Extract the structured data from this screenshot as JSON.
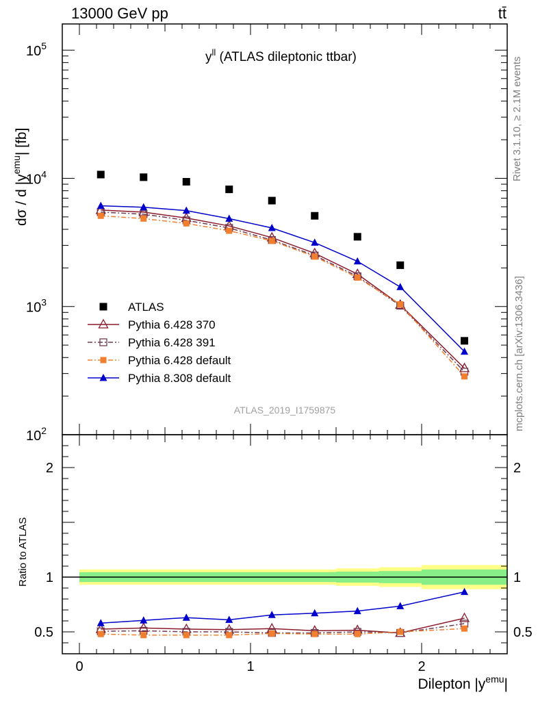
{
  "header": {
    "left": "13000 GeV pp",
    "right": "tt̄"
  },
  "chart_data": {
    "type": "scatter",
    "title": "y",
    "title_sup": "ll",
    "title_rest": " (ATLAS dileptonic ttbar)",
    "analysis_label": "ATLAS_2019_I1759875",
    "side_labels": {
      "rivet": "Rivet 3.1.10, ≥ 2.1M events",
      "mcplots": "mcplots.cern.ch [arXiv:1306.3436]"
    },
    "ylabel_main": "dσ / d |y",
    "ylabel_main_sup": "emu",
    "ylabel_main_tail": "| [fb]",
    "ylabel_ratio": "Ratio to ATLAS",
    "xlabel": "Dilepton |y",
    "xlabel_sup": "emu",
    "xlabel_tail": "|",
    "xlim": [
      -0.1,
      2.5
    ],
    "ylim_main_log": [
      100,
      160000
    ],
    "ylim_ratio": [
      0.3,
      2.3
    ],
    "x_ticks": [
      {
        "value": 0,
        "label": "0"
      },
      {
        "value": 1,
        "label": "1"
      },
      {
        "value": 2,
        "label": "2"
      }
    ],
    "y_ticks_main": [
      {
        "value": 1000,
        "base": "10",
        "exp": "3"
      },
      {
        "value": 10000,
        "base": "10",
        "exp": "4"
      },
      {
        "value": 100000,
        "base": "10",
        "exp": "5"
      },
      {
        "value": 100,
        "base": "10",
        "exp": "2"
      }
    ],
    "y_ticks_ratio": [
      {
        "value": 0.5,
        "label": "0.5"
      },
      {
        "value": 1,
        "label": "1"
      },
      {
        "value": 2,
        "label": "2"
      }
    ],
    "x": [
      0.125,
      0.375,
      0.625,
      0.875,
      1.125,
      1.375,
      1.625,
      1.875,
      2.25
    ],
    "band_edges": [
      0,
      0.25,
      0.5,
      0.75,
      1.0,
      1.25,
      1.5,
      1.75,
      2.0,
      2.5
    ],
    "band_yellow": [
      0.07,
      0.07,
      0.07,
      0.07,
      0.07,
      0.07,
      0.08,
      0.09,
      0.11
    ],
    "band_green": [
      0.045,
      0.045,
      0.045,
      0.045,
      0.045,
      0.045,
      0.05,
      0.055,
      0.07
    ],
    "series": [
      {
        "name": "ATLAS",
        "color": "#000000",
        "marker": "square-filled",
        "line": "none",
        "values": [
          10700,
          10200,
          9400,
          8200,
          6700,
          5100,
          3500,
          2100,
          540
        ]
      },
      {
        "name": "Pythia 6.428 370",
        "color": "#8b1a2b",
        "marker": "triangle-open",
        "line": "solid",
        "values": [
          5650,
          5450,
          4900,
          4250,
          3450,
          2600,
          1790,
          1030,
          330
        ]
      },
      {
        "name": "Pythia 6.428 391",
        "color": "#6e3b50",
        "marker": "square-open",
        "line": "dashdot",
        "values": [
          5450,
          5250,
          4700,
          4100,
          3300,
          2500,
          1720,
          1015,
          310
        ]
      },
      {
        "name": "Pythia 6.428 default",
        "color": "#f08030",
        "marker": "square-small-filled",
        "line": "dashdot",
        "values": [
          5100,
          4850,
          4450,
          3900,
          3250,
          2450,
          1680,
          1040,
          285
        ]
      },
      {
        "name": "Pythia 8.308 default",
        "color": "#0000cc",
        "marker": "triangle-filled",
        "line": "solid",
        "values": [
          6100,
          5950,
          5600,
          4850,
          4100,
          3150,
          2250,
          1420,
          445
        ]
      }
    ],
    "ratios": [
      {
        "name": "Pythia 6.428 370",
        "values": [
          0.525,
          0.535,
          0.525,
          0.52,
          0.53,
          0.51,
          0.515,
          0.49,
          0.625
        ]
      },
      {
        "name": "Pythia 6.428 391",
        "values": [
          0.505,
          0.51,
          0.5,
          0.5,
          0.49,
          0.49,
          0.5,
          0.49,
          0.575
        ]
      },
      {
        "name": "Pythia 6.428 default",
        "values": [
          0.48,
          0.47,
          0.47,
          0.47,
          0.485,
          0.48,
          0.48,
          0.5,
          0.53
        ]
      },
      {
        "name": "Pythia 8.308 default",
        "values": [
          0.58,
          0.605,
          0.63,
          0.61,
          0.655,
          0.67,
          0.69,
          0.735,
          0.865
        ]
      }
    ]
  }
}
